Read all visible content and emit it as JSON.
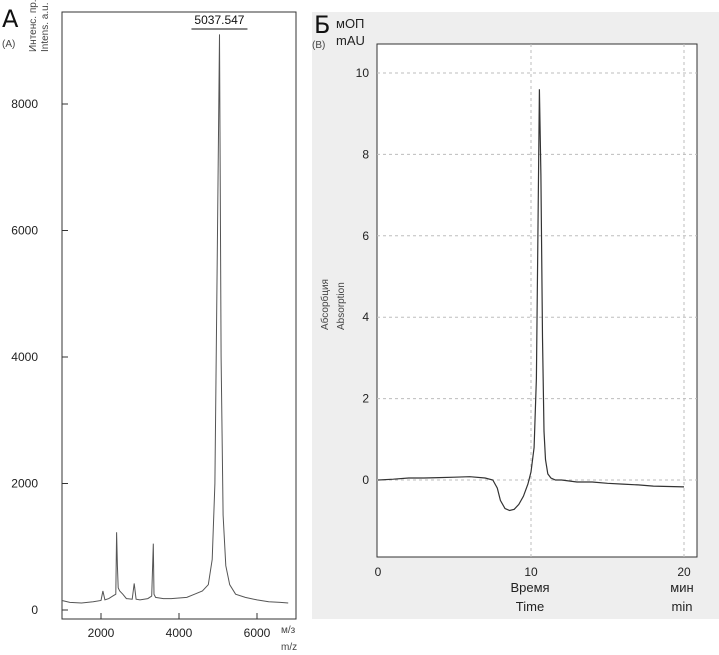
{
  "panels": {
    "a": {
      "letter": "А",
      "sub": "(A)"
    },
    "b": {
      "letter": "Б",
      "sub": "(B)"
    }
  },
  "chart_data": [
    {
      "type": "line",
      "title": "",
      "ylabel_ru": "Интенс. пр.е",
      "ylabel_en": "Intens. a.u.",
      "xlabel_ru": "м/з",
      "xlabel_en": "m/z",
      "xlim": [
        1000,
        7000
      ],
      "ylim": [
        0,
        9200
      ],
      "xticks": [
        2000,
        4000,
        6000
      ],
      "yticks": [
        0,
        2000,
        4000,
        6000,
        8000
      ],
      "grid": false,
      "peak_label": "5037.547",
      "peak": {
        "x": 5037.547,
        "y": 9100
      },
      "series": [
        {
          "x": [
            1000,
            1200,
            1500,
            1800,
            2000,
            2050,
            2100,
            2200,
            2300,
            2380,
            2400,
            2420,
            2440,
            2480,
            2560,
            2650,
            2800,
            2850,
            2900,
            3000,
            3200,
            3300,
            3340,
            3360,
            3400,
            3600,
            3800,
            4000,
            4200,
            4400,
            4600,
            4750,
            4850,
            4920,
            4980,
            5037.547,
            5080,
            5130,
            5200,
            5300,
            5450,
            5700,
            6000,
            6300,
            6600,
            6800
          ],
          "y": [
            150,
            120,
            110,
            130,
            150,
            300,
            160,
            180,
            220,
            250,
            1230,
            700,
            350,
            300,
            250,
            180,
            170,
            420,
            170,
            160,
            180,
            220,
            1050,
            250,
            200,
            180,
            180,
            190,
            200,
            250,
            300,
            400,
            800,
            2000,
            5500,
            9100,
            4000,
            1500,
            700,
            400,
            250,
            200,
            160,
            130,
            120,
            110
          ]
        }
      ]
    },
    {
      "type": "line",
      "title": "",
      "ylabel_ru": "Абсорбция",
      "ylabel_en": "Absorption",
      "yunit_ru": "мОП",
      "yunit_en": "mAU",
      "xlabel_ru": "Время",
      "xlabel_en": "Time",
      "xunit_ru": "мин",
      "xunit_en": "min",
      "xlim": [
        0,
        20.5
      ],
      "ylim": [
        -1.8,
        10.4
      ],
      "xticks": [
        0,
        10,
        20
      ],
      "yticks": [
        0,
        2,
        4,
        6,
        8,
        10
      ],
      "grid": true,
      "series": [
        {
          "x": [
            0,
            1,
            2,
            3,
            4,
            5,
            6,
            7,
            7.5,
            7.8,
            8.0,
            8.3,
            8.6,
            8.9,
            9.2,
            9.5,
            9.8,
            10.0,
            10.2,
            10.35,
            10.45,
            10.55,
            10.65,
            10.75,
            10.85,
            10.95,
            11.1,
            11.3,
            11.6,
            12.0,
            13,
            14,
            15,
            16,
            17,
            18,
            19,
            20
          ],
          "y": [
            0,
            0.02,
            0.05,
            0.05,
            0.06,
            0.07,
            0.08,
            0.05,
            0.0,
            -0.2,
            -0.5,
            -0.7,
            -0.75,
            -0.72,
            -0.6,
            -0.4,
            -0.1,
            0.2,
            0.8,
            2.5,
            6.0,
            9.6,
            7.5,
            3.5,
            1.2,
            0.5,
            0.15,
            0.05,
            0.0,
            0.0,
            -0.05,
            -0.05,
            -0.08,
            -0.1,
            -0.12,
            -0.15,
            -0.16,
            -0.17
          ]
        }
      ]
    }
  ]
}
